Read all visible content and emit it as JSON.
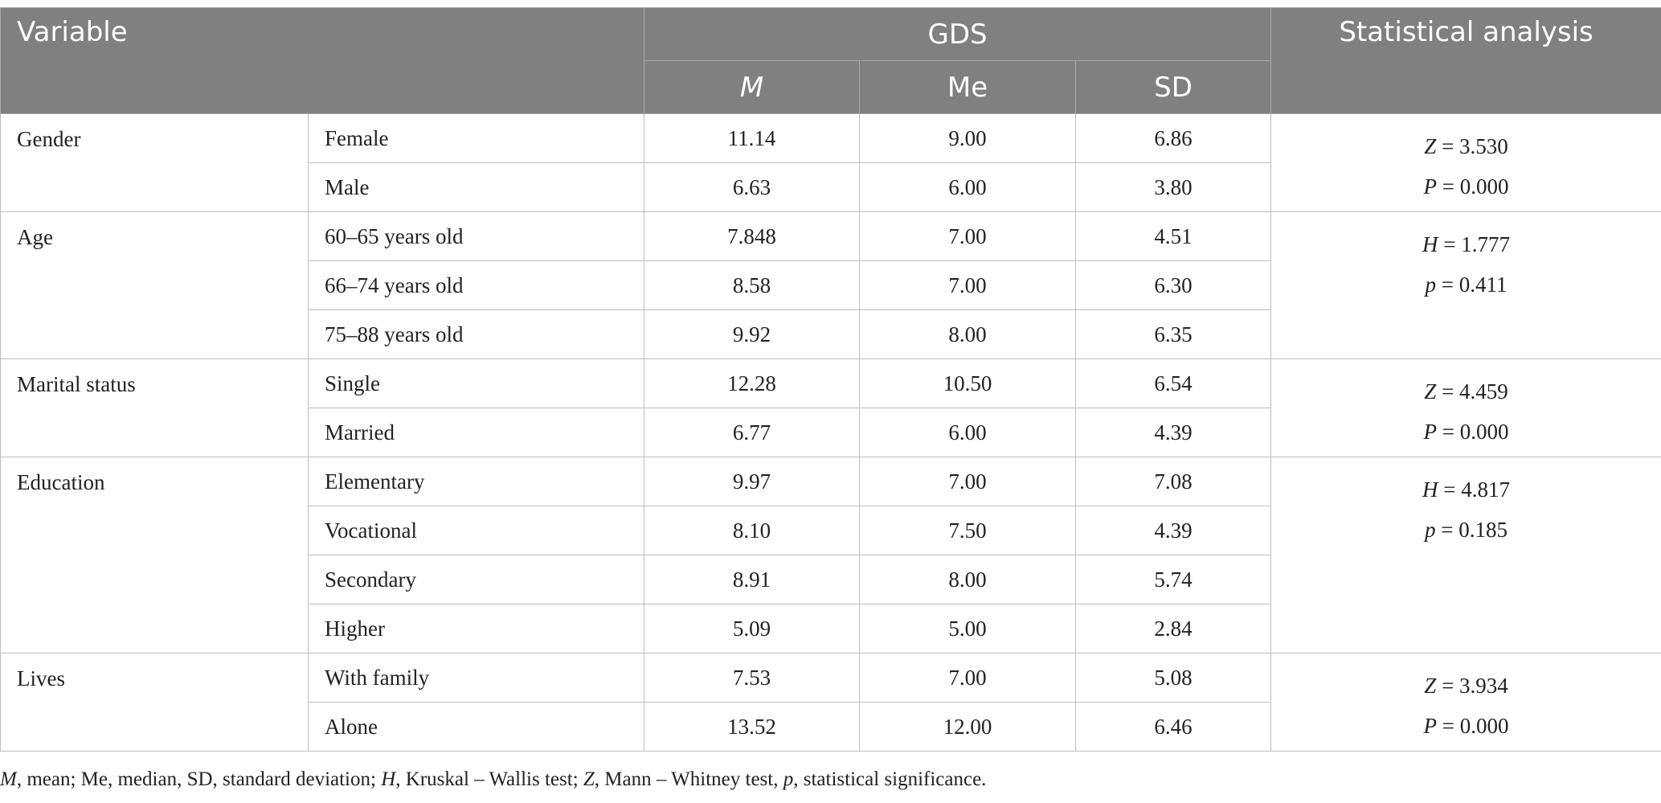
{
  "header": {
    "variable": "Variable",
    "gds": "GDS",
    "stat": "Statistical analysis",
    "m": "M",
    "me": "Me",
    "sd": "SD"
  },
  "groups": [
    {
      "variable": "Gender",
      "stat": [
        {
          "sym": "Z",
          "val": " = 3.530"
        },
        {
          "sym": "P",
          "val": " = 0.000"
        }
      ],
      "rows": [
        {
          "category": "Female",
          "m": "11.14",
          "me": "9.00",
          "sd": "6.86"
        },
        {
          "category": "Male",
          "m": "6.63",
          "me": "6.00",
          "sd": "3.80"
        }
      ]
    },
    {
      "variable": "Age",
      "stat": [
        {
          "sym": "H",
          "val": " = 1.777"
        },
        {
          "sym": "p",
          "val": " = 0.411"
        }
      ],
      "rows": [
        {
          "category": "60–65 years old",
          "m": "7.848",
          "me": "7.00",
          "sd": "4.51"
        },
        {
          "category": "66–74 years old",
          "m": "8.58",
          "me": "7.00",
          "sd": "6.30"
        },
        {
          "category": "75–88 years old",
          "m": "9.92",
          "me": "8.00",
          "sd": "6.35"
        }
      ]
    },
    {
      "variable": "Marital status",
      "stat": [
        {
          "sym": "Z",
          "val": " = 4.459"
        },
        {
          "sym": "P",
          "val": " = 0.000"
        }
      ],
      "rows": [
        {
          "category": "Single",
          "m": "12.28",
          "me": "10.50",
          "sd": "6.54"
        },
        {
          "category": "Married",
          "m": "6.77",
          "me": "6.00",
          "sd": "4.39"
        }
      ]
    },
    {
      "variable": "Education",
      "stat": [
        {
          "sym": "H",
          "val": " = 4.817"
        },
        {
          "sym": "p",
          "val": " = 0.185"
        }
      ],
      "rows": [
        {
          "category": "Elementary",
          "m": "9.97",
          "me": "7.00",
          "sd": "7.08"
        },
        {
          "category": "Vocational",
          "m": "8.10",
          "me": "7.50",
          "sd": "4.39"
        },
        {
          "category": "Secondary",
          "m": "8.91",
          "me": "8.00",
          "sd": "5.74"
        },
        {
          "category": "Higher",
          "m": "5.09",
          "me": "5.00",
          "sd": "2.84"
        }
      ]
    },
    {
      "variable": "Lives",
      "stat": [
        {
          "sym": "Z",
          "val": " = 3.934"
        },
        {
          "sym": "P",
          "val": " = 0.000"
        }
      ],
      "rows": [
        {
          "category": "With family",
          "m": "7.53",
          "me": "7.00",
          "sd": "5.08"
        },
        {
          "category": "Alone",
          "m": "13.52",
          "me": "12.00",
          "sd": "6.46"
        }
      ]
    }
  ],
  "footnote": [
    {
      "text": "M",
      "italic": true
    },
    {
      "text": ", mean; Me, median, SD, standard deviation; ",
      "italic": false
    },
    {
      "text": "H",
      "italic": true
    },
    {
      "text": ", Kruskal – Wallis test; ",
      "italic": false
    },
    {
      "text": "Z",
      "italic": true
    },
    {
      "text": ", Mann – Whitney test, ",
      "italic": false
    },
    {
      "text": "p",
      "italic": true
    },
    {
      "text": ", statistical significance.",
      "italic": false
    }
  ]
}
